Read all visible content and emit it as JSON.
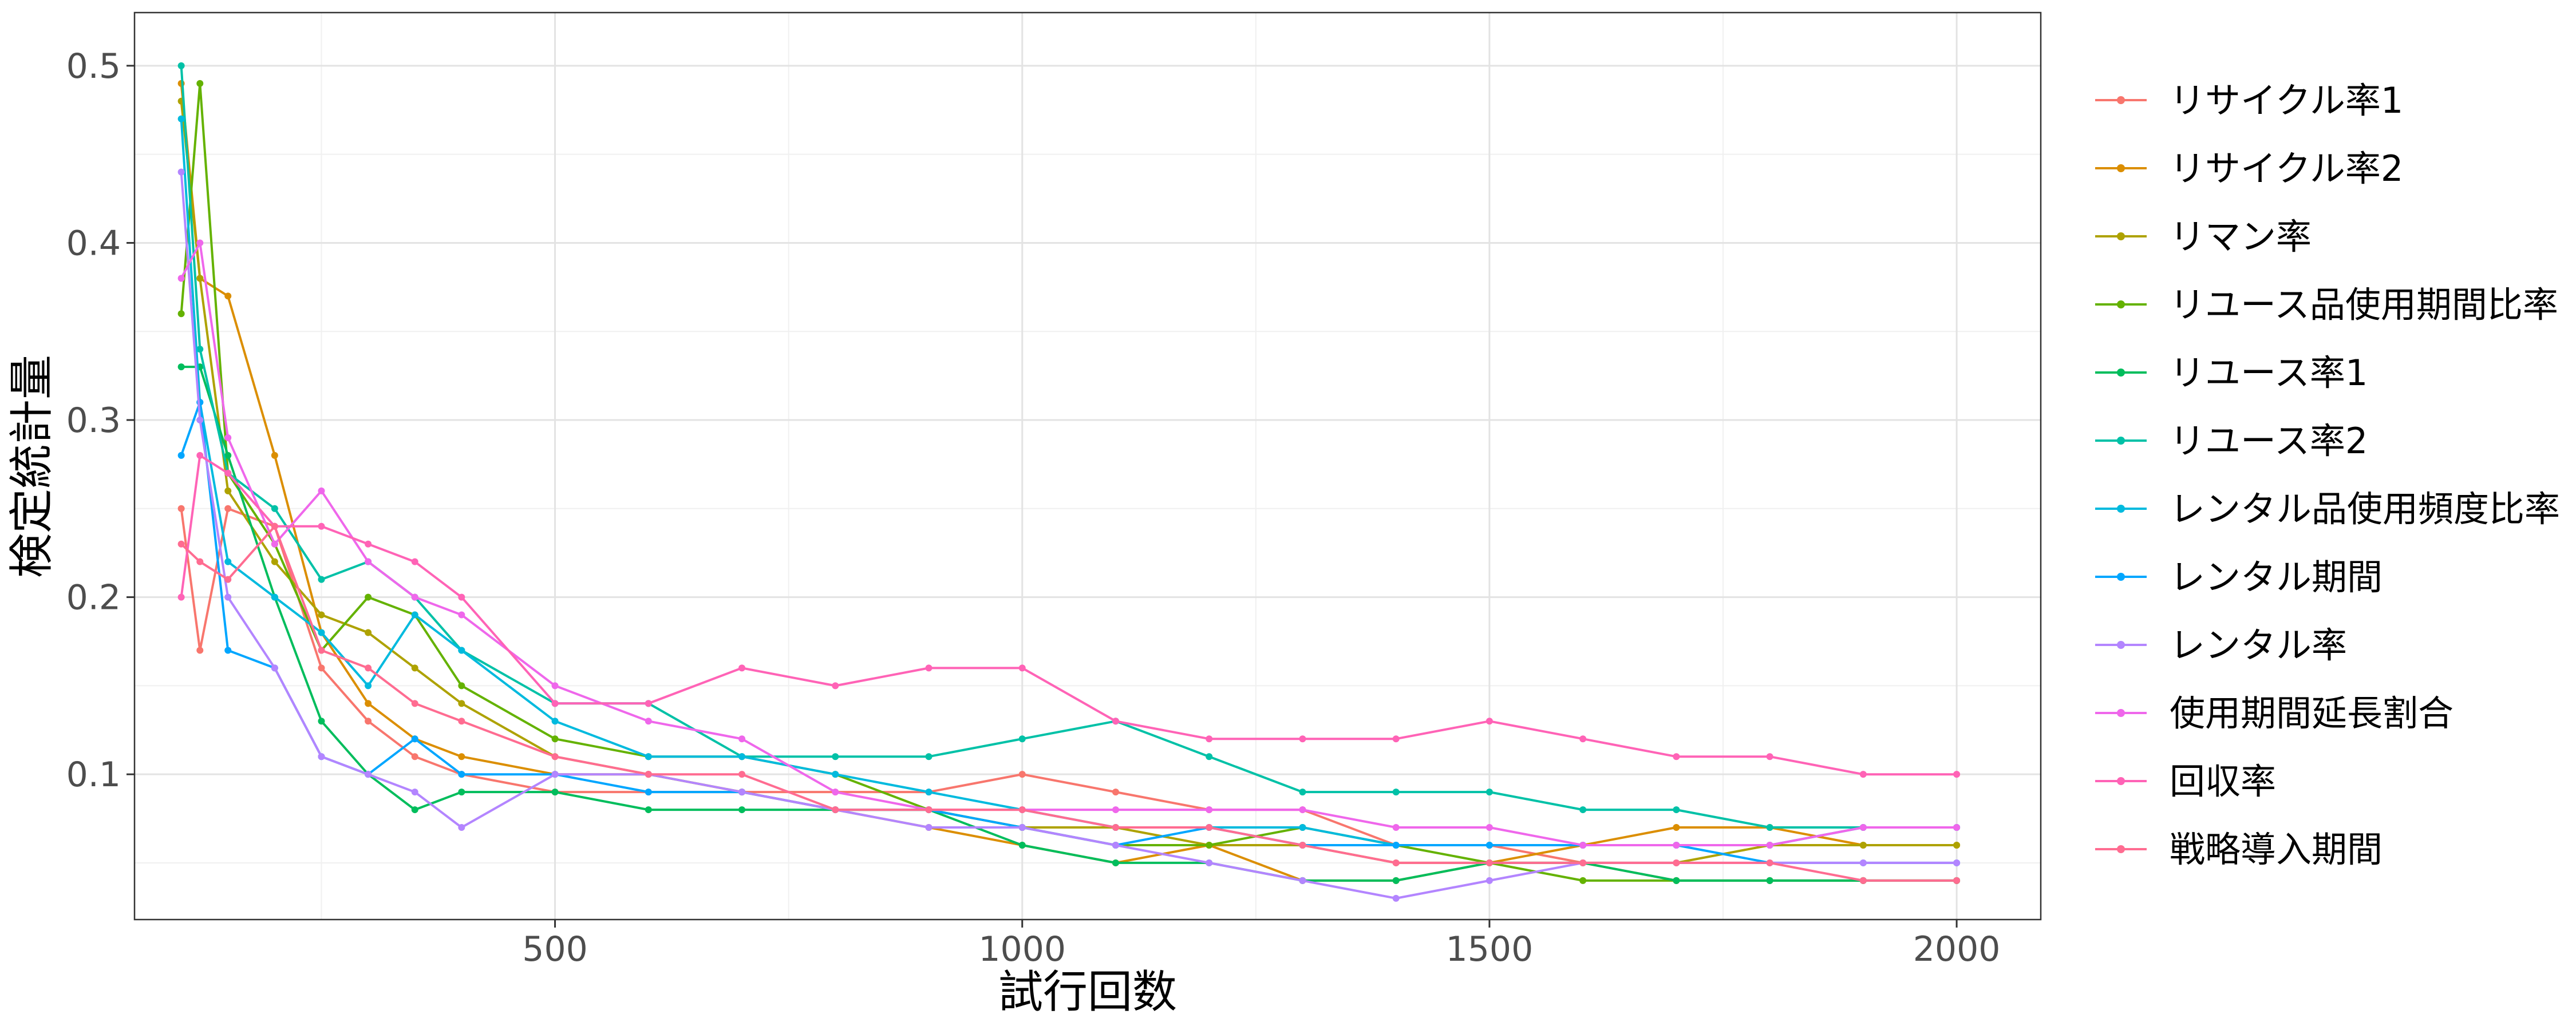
{
  "chart_data": {
    "type": "line",
    "title": "",
    "xlabel": "試行回数",
    "ylabel": "検定統計量",
    "xlim": [
      50,
      2090
    ],
    "ylim": [
      0.018,
      0.53
    ],
    "xticks": [
      500,
      1000,
      1500,
      2000
    ],
    "xtick_labels": [
      "500",
      "1000",
      "1500",
      "2000"
    ],
    "yticks": [
      0.1,
      0.2,
      0.3,
      0.4,
      0.5
    ],
    "ytick_labels": [
      "0.1",
      "0.2",
      "0.3",
      "0.4",
      "0.5"
    ],
    "grid": true,
    "legend_position": "right",
    "series": [
      {
        "name": "リサイクル率1",
        "color": "#F8766D",
        "x": [
          100,
          120,
          150,
          200,
          250,
          300,
          350,
          400,
          500,
          600,
          700,
          800,
          900,
          1000,
          1100,
          1200,
          1300,
          1400,
          1500,
          1600,
          1700,
          1800,
          1900,
          2000
        ],
        "values": [
          0.25,
          0.17,
          0.25,
          0.24,
          0.16,
          0.13,
          0.11,
          0.1,
          0.09,
          0.09,
          0.09,
          0.09,
          0.09,
          0.1,
          0.09,
          0.08,
          0.08,
          0.06,
          0.06,
          0.05,
          0.04,
          0.04,
          0.04,
          0.04
        ]
      },
      {
        "name": "リサイクル率2",
        "color": "#DB8E00",
        "x": [
          100,
          120,
          150,
          200,
          250,
          300,
          350,
          400,
          500,
          600,
          700,
          800,
          900,
          1000,
          1100,
          1200,
          1300,
          1400,
          1500,
          1600,
          1700,
          1800,
          1900,
          2000
        ],
        "values": [
          0.49,
          0.38,
          0.37,
          0.28,
          0.18,
          0.14,
          0.12,
          0.11,
          0.1,
          0.1,
          0.09,
          0.08,
          0.07,
          0.06,
          0.05,
          0.06,
          0.04,
          0.04,
          0.05,
          0.06,
          0.07,
          0.07,
          0.06,
          0.06
        ]
      },
      {
        "name": "リマン率",
        "color": "#AEA200",
        "x": [
          100,
          120,
          150,
          200,
          250,
          300,
          350,
          400,
          500,
          600,
          700,
          800,
          900,
          1000,
          1100,
          1200,
          1300,
          1400,
          1500,
          1600,
          1700,
          1800,
          1900,
          2000
        ],
        "values": [
          0.48,
          0.38,
          0.26,
          0.22,
          0.19,
          0.18,
          0.16,
          0.14,
          0.11,
          0.1,
          0.09,
          0.08,
          0.08,
          0.07,
          0.07,
          0.06,
          0.06,
          0.05,
          0.05,
          0.05,
          0.05,
          0.06,
          0.06,
          0.06
        ]
      },
      {
        "name": "リユース品使用期間比率",
        "color": "#64B200",
        "x": [
          100,
          120,
          150,
          200,
          250,
          300,
          350,
          400,
          500,
          600,
          700,
          800,
          900,
          1000,
          1100,
          1200,
          1300,
          1400,
          1500,
          1600,
          1700,
          1800,
          1900,
          2000
        ],
        "values": [
          0.36,
          0.49,
          0.27,
          0.23,
          0.17,
          0.2,
          0.19,
          0.15,
          0.12,
          0.11,
          0.11,
          0.1,
          0.08,
          0.07,
          0.06,
          0.06,
          0.07,
          0.06,
          0.05,
          0.04,
          0.04,
          0.04,
          0.04,
          0.04
        ]
      },
      {
        "name": "リユース率1",
        "color": "#00BD5C",
        "x": [
          100,
          120,
          150,
          200,
          250,
          300,
          350,
          400,
          500,
          600,
          700,
          800,
          900,
          1000,
          1100,
          1200,
          1300,
          1400,
          1500,
          1600,
          1700,
          1800,
          1900,
          2000
        ],
        "values": [
          0.33,
          0.33,
          0.28,
          0.2,
          0.13,
          0.1,
          0.08,
          0.09,
          0.09,
          0.08,
          0.08,
          0.08,
          0.08,
          0.06,
          0.05,
          0.05,
          0.04,
          0.04,
          0.05,
          0.05,
          0.04,
          0.04,
          0.04,
          0.04
        ]
      },
      {
        "name": "リユース率2",
        "color": "#00C1A7",
        "x": [
          100,
          120,
          150,
          200,
          250,
          300,
          350,
          400,
          500,
          600,
          700,
          800,
          900,
          1000,
          1100,
          1200,
          1300,
          1400,
          1500,
          1600,
          1700,
          1800,
          1900,
          2000
        ],
        "values": [
          0.5,
          0.34,
          0.27,
          0.25,
          0.21,
          0.22,
          0.2,
          0.17,
          0.14,
          0.14,
          0.11,
          0.11,
          0.11,
          0.12,
          0.13,
          0.11,
          0.09,
          0.09,
          0.09,
          0.08,
          0.08,
          0.07,
          0.07,
          0.07
        ]
      },
      {
        "name": "レンタル品使用頻度比率",
        "color": "#00BADE",
        "x": [
          100,
          120,
          150,
          200,
          250,
          300,
          350,
          400,
          500,
          600,
          700,
          800,
          900,
          1000,
          1100,
          1200,
          1300,
          1400,
          1500,
          1600,
          1700,
          1800,
          1900,
          2000
        ],
        "values": [
          0.47,
          0.31,
          0.22,
          0.2,
          0.18,
          0.15,
          0.19,
          0.17,
          0.13,
          0.11,
          0.11,
          0.1,
          0.09,
          0.08,
          0.07,
          0.07,
          0.07,
          0.06,
          0.06,
          0.06,
          0.06,
          0.06,
          0.07,
          0.07
        ]
      },
      {
        "name": "レンタル期間",
        "color": "#00A6FF",
        "x": [
          100,
          120,
          150,
          200,
          250,
          300,
          350,
          400,
          500,
          600,
          700,
          800,
          900,
          1000,
          1100,
          1200,
          1300,
          1400,
          1500,
          1600,
          1700,
          1800,
          1900,
          2000
        ],
        "values": [
          0.28,
          0.31,
          0.17,
          0.16,
          0.11,
          0.1,
          0.12,
          0.1,
          0.1,
          0.09,
          0.09,
          0.08,
          0.08,
          0.07,
          0.06,
          0.07,
          0.06,
          0.06,
          0.06,
          0.06,
          0.06,
          0.05,
          0.05,
          0.05
        ]
      },
      {
        "name": "レンタル率",
        "color": "#B385FF",
        "x": [
          100,
          120,
          150,
          200,
          250,
          300,
          350,
          400,
          500,
          600,
          700,
          800,
          900,
          1000,
          1100,
          1200,
          1300,
          1400,
          1500,
          1600,
          1700,
          1800,
          1900,
          2000
        ],
        "values": [
          0.44,
          0.3,
          0.2,
          0.16,
          0.11,
          0.1,
          0.09,
          0.07,
          0.1,
          0.1,
          0.09,
          0.08,
          0.07,
          0.07,
          0.06,
          0.05,
          0.04,
          0.03,
          0.04,
          0.05,
          0.05,
          0.05,
          0.05,
          0.05
        ]
      },
      {
        "name": "使用期間延長割合",
        "color": "#EF67EB",
        "x": [
          100,
          120,
          150,
          200,
          250,
          300,
          350,
          400,
          500,
          600,
          700,
          800,
          900,
          1000,
          1100,
          1200,
          1300,
          1400,
          1500,
          1600,
          1700,
          1800,
          1900,
          2000
        ],
        "values": [
          0.38,
          0.4,
          0.29,
          0.23,
          0.26,
          0.22,
          0.2,
          0.19,
          0.15,
          0.13,
          0.12,
          0.09,
          0.08,
          0.08,
          0.08,
          0.08,
          0.08,
          0.07,
          0.07,
          0.06,
          0.06,
          0.06,
          0.07,
          0.07
        ]
      },
      {
        "name": "回収率",
        "color": "#FF63B6",
        "x": [
          100,
          120,
          150,
          200,
          250,
          300,
          350,
          400,
          500,
          600,
          700,
          800,
          900,
          1000,
          1100,
          1200,
          1300,
          1400,
          1500,
          1600,
          1700,
          1800,
          1900,
          2000
        ],
        "values": [
          0.2,
          0.28,
          0.27,
          0.24,
          0.24,
          0.23,
          0.22,
          0.2,
          0.14,
          0.14,
          0.16,
          0.15,
          0.16,
          0.16,
          0.13,
          0.12,
          0.12,
          0.12,
          0.13,
          0.12,
          0.11,
          0.11,
          0.1,
          0.1
        ]
      },
      {
        "name": "戦略導入期間",
        "color": "#FF6C91",
        "x": [
          100,
          120,
          150,
          200,
          250,
          300,
          350,
          400,
          500,
          600,
          700,
          800,
          900,
          1000,
          1100,
          1200,
          1300,
          1400,
          1500,
          1600,
          1700,
          1800,
          1900,
          2000
        ],
        "values": [
          0.23,
          0.22,
          0.21,
          0.24,
          0.17,
          0.16,
          0.14,
          0.13,
          0.11,
          0.1,
          0.1,
          0.08,
          0.08,
          0.08,
          0.07,
          0.07,
          0.06,
          0.05,
          0.05,
          0.05,
          0.05,
          0.05,
          0.04,
          0.04
        ]
      }
    ]
  }
}
